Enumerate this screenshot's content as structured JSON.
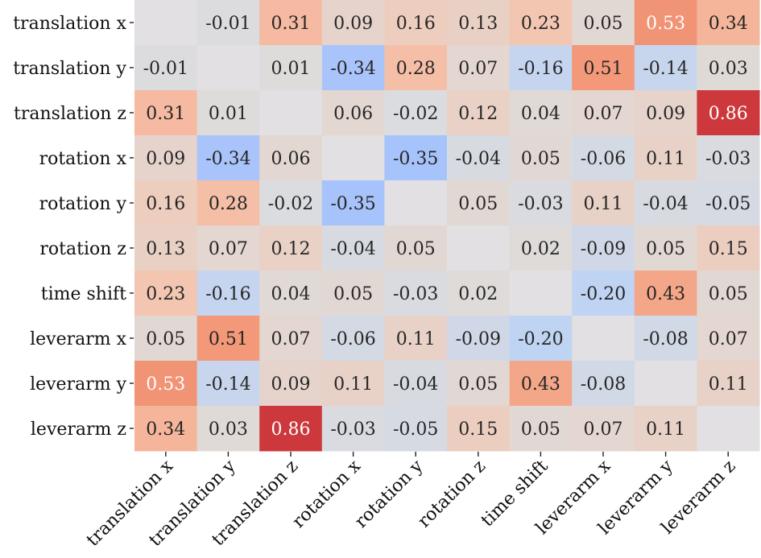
{
  "chart_data": {
    "type": "heatmap",
    "title": "",
    "xlabel": "",
    "ylabel": "",
    "colormap": "coolwarm",
    "vmin": -1,
    "vmax": 1,
    "diagonal_masked": true,
    "x_labels": [
      "translation x",
      "translation y",
      "translation z",
      "rotation x",
      "rotation y",
      "rotation z",
      "time shift",
      "leverarm x",
      "leverarm y",
      "leverarm z"
    ],
    "y_labels": [
      "translation x",
      "translation y",
      "translation z",
      "rotation x",
      "rotation y",
      "rotation z",
      "time shift",
      "leverarm x",
      "leverarm y",
      "leverarm z"
    ],
    "values": [
      [
        null,
        -0.01,
        0.31,
        0.09,
        0.16,
        0.13,
        0.23,
        0.05,
        0.53,
        0.34
      ],
      [
        -0.01,
        null,
        0.01,
        -0.34,
        0.28,
        0.07,
        -0.16,
        0.51,
        -0.14,
        0.03
      ],
      [
        0.31,
        0.01,
        null,
        0.06,
        -0.02,
        0.12,
        0.04,
        0.07,
        0.09,
        0.86
      ],
      [
        0.09,
        -0.34,
        0.06,
        null,
        -0.35,
        -0.04,
        0.05,
        -0.06,
        0.11,
        -0.03
      ],
      [
        0.16,
        0.28,
        -0.02,
        -0.35,
        null,
        0.05,
        -0.03,
        0.11,
        -0.04,
        -0.05
      ],
      [
        0.13,
        0.07,
        0.12,
        -0.04,
        0.05,
        null,
        0.02,
        -0.09,
        0.05,
        0.15
      ],
      [
        0.23,
        -0.16,
        0.04,
        0.05,
        -0.03,
        0.02,
        null,
        -0.2,
        0.43,
        0.05
      ],
      [
        0.05,
        0.51,
        0.07,
        -0.06,
        0.11,
        -0.09,
        -0.2,
        null,
        -0.08,
        0.07
      ],
      [
        0.53,
        -0.14,
        0.09,
        0.11,
        -0.04,
        0.05,
        0.43,
        -0.08,
        null,
        0.11
      ],
      [
        0.34,
        0.03,
        0.86,
        -0.03,
        -0.05,
        0.15,
        0.05,
        0.07,
        0.11,
        null
      ]
    ],
    "value_format": "2 decimals",
    "grid": false,
    "legend": "none",
    "colorbar": false
  }
}
